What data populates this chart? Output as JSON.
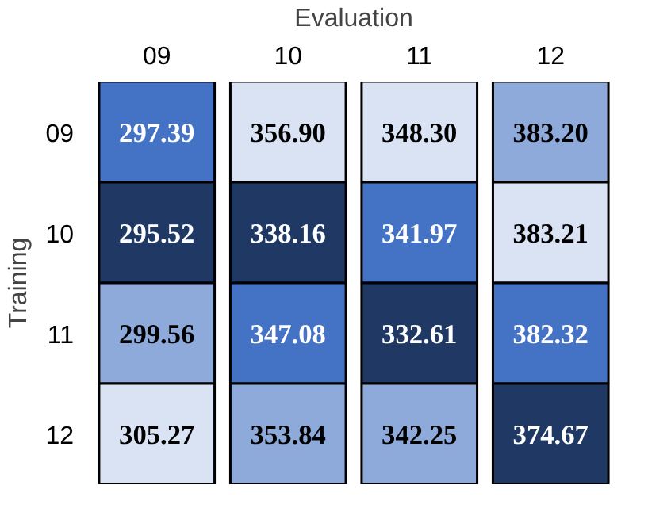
{
  "chart_data": {
    "type": "heatmap",
    "xlabel": "Evaluation",
    "ylabel": "Training",
    "categories": [
      "09",
      "10",
      "11",
      "12"
    ],
    "y_categories": [
      "09",
      "10",
      "11",
      "12"
    ],
    "cells": [
      [
        297.39,
        356.9,
        348.3,
        383.2
      ],
      [
        295.52,
        338.16,
        341.97,
        383.21
      ],
      [
        299.56,
        347.08,
        332.61,
        382.32
      ],
      [
        305.27,
        353.84,
        342.25,
        374.67
      ]
    ],
    "cell_labels": [
      [
        "297.39",
        "356.90",
        "348.30",
        "383.20"
      ],
      [
        "295.52",
        "338.16",
        "341.97",
        "383.21"
      ],
      [
        "299.56",
        "347.08",
        "332.61",
        "382.32"
      ],
      [
        "305.27",
        "353.84",
        "342.25",
        "374.67"
      ]
    ],
    "colors": [
      "#1f3864",
      "#4472c4",
      "#8eaadb",
      "#dae3f3"
    ]
  }
}
